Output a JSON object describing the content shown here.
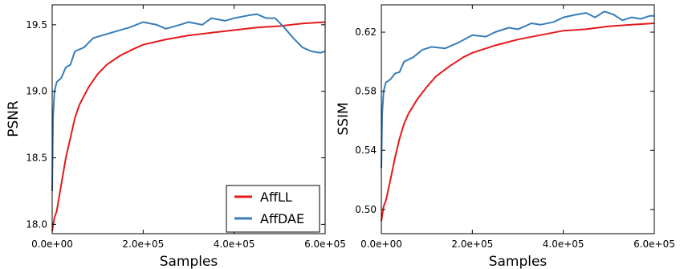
{
  "chart_data": [
    {
      "type": "line",
      "xlabel": "Samples",
      "ylabel": "PSNR",
      "xlim": [
        0,
        600000
      ],
      "ylim": [
        17.93,
        19.65
      ],
      "xticks": [
        0,
        200000,
        400000,
        600000
      ],
      "xtick_labels": [
        "0.0e+00",
        "2.0e+05",
        "4.0e+05",
        "6.0e+05"
      ],
      "yticks": [
        18.0,
        18.5,
        19.0,
        19.5
      ],
      "ytick_labels": [
        "18.0",
        "18.5",
        "19.0",
        "19.5"
      ],
      "grid": false,
      "legend": "bottom-right",
      "series": [
        {
          "name": "AffLL",
          "color": "#e41a1c",
          "x": [
            0,
            5000,
            10000,
            20000,
            30000,
            40000,
            50000,
            60000,
            80000,
            100000,
            120000,
            150000,
            180000,
            200000,
            250000,
            300000,
            350000,
            400000,
            450000,
            500000,
            550000,
            600000
          ],
          "y": [
            17.95,
            18.05,
            18.1,
            18.3,
            18.5,
            18.65,
            18.8,
            18.9,
            19.03,
            19.13,
            19.2,
            19.27,
            19.32,
            19.35,
            19.39,
            19.42,
            19.44,
            19.46,
            19.48,
            19.49,
            19.51,
            19.52
          ]
        },
        {
          "name": "AffDAE",
          "color": "#377eb8",
          "x": [
            0,
            2000,
            5000,
            10000,
            20000,
            30000,
            40000,
            50000,
            70000,
            90000,
            110000,
            140000,
            170000,
            200000,
            230000,
            250000,
            280000,
            300000,
            330000,
            350000,
            380000,
            400000,
            430000,
            450000,
            470000,
            490000,
            510000,
            530000,
            550000,
            570000,
            590000,
            600000
          ],
          "y": [
            18.25,
            18.8,
            19.0,
            19.07,
            19.1,
            19.18,
            19.2,
            19.3,
            19.33,
            19.4,
            19.42,
            19.45,
            19.48,
            19.52,
            19.5,
            19.47,
            19.5,
            19.52,
            19.5,
            19.55,
            19.53,
            19.55,
            19.57,
            19.58,
            19.55,
            19.55,
            19.48,
            19.4,
            19.33,
            19.3,
            19.29,
            19.3
          ]
        }
      ]
    },
    {
      "type": "line",
      "xlabel": "Samples",
      "ylabel": "SSIM",
      "xlim": [
        0,
        600000
      ],
      "ylim": [
        0.4836,
        0.6385
      ],
      "xticks": [
        0,
        200000,
        400000,
        600000
      ],
      "xtick_labels": [
        "0.0e+00",
        "2.0e+05",
        "4.0e+05",
        "6.0e+05"
      ],
      "yticks": [
        0.5,
        0.54,
        0.58,
        0.62
      ],
      "ytick_labels": [
        "0.50",
        "0.54",
        "0.58",
        "0.62"
      ],
      "grid": false,
      "series": [
        {
          "name": "AffLL",
          "color": "#e41a1c",
          "x": [
            0,
            5000,
            10000,
            20000,
            30000,
            40000,
            50000,
            60000,
            80000,
            100000,
            120000,
            150000,
            180000,
            200000,
            250000,
            300000,
            350000,
            400000,
            450000,
            500000,
            550000,
            600000
          ],
          "y": [
            0.492,
            0.502,
            0.506,
            0.52,
            0.535,
            0.548,
            0.558,
            0.565,
            0.575,
            0.583,
            0.59,
            0.597,
            0.603,
            0.606,
            0.611,
            0.615,
            0.618,
            0.621,
            0.622,
            0.624,
            0.625,
            0.626
          ]
        },
        {
          "name": "AffDAE",
          "color": "#377eb8",
          "x": [
            0,
            2000,
            5000,
            10000,
            20000,
            30000,
            40000,
            50000,
            70000,
            90000,
            110000,
            140000,
            170000,
            200000,
            230000,
            250000,
            280000,
            300000,
            330000,
            350000,
            380000,
            400000,
            430000,
            450000,
            470000,
            490000,
            510000,
            530000,
            550000,
            570000,
            590000,
            600000
          ],
          "y": [
            0.528,
            0.565,
            0.58,
            0.586,
            0.588,
            0.592,
            0.593,
            0.6,
            0.603,
            0.608,
            0.61,
            0.609,
            0.613,
            0.618,
            0.617,
            0.62,
            0.623,
            0.622,
            0.626,
            0.625,
            0.627,
            0.63,
            0.632,
            0.633,
            0.63,
            0.634,
            0.632,
            0.628,
            0.63,
            0.629,
            0.631,
            0.631
          ]
        }
      ]
    }
  ]
}
